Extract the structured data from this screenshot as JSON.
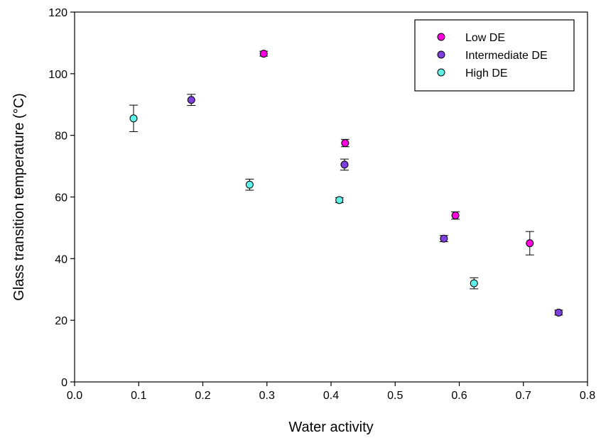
{
  "chart_data": {
    "type": "scatter",
    "title": "",
    "xlabel": "Water activity",
    "ylabel": "Glass transition temperature (°C)",
    "xlim": [
      0.0,
      0.8
    ],
    "ylim": [
      0,
      120
    ],
    "xticks": [
      0.0,
      0.1,
      0.2,
      0.3,
      0.4,
      0.5,
      0.6,
      0.7,
      0.8
    ],
    "xtick_labels": [
      "0.0",
      "0.1",
      "0.2",
      "0.3",
      "0.4",
      "0.5",
      "0.6",
      "0.7",
      "0.8"
    ],
    "yticks": [
      0,
      20,
      40,
      60,
      80,
      100,
      120
    ],
    "ytick_labels": [
      "0",
      "20",
      "40",
      "60",
      "80",
      "100",
      "120"
    ],
    "grid": false,
    "legend_position": "top-right",
    "series": [
      {
        "name": "Low DE",
        "color": "#FF00E0",
        "points": [
          {
            "x": 0.295,
            "y": 106.5,
            "err": 0.8
          },
          {
            "x": 0.422,
            "y": 77.5,
            "err": 1.2
          },
          {
            "x": 0.594,
            "y": 54.0,
            "err": 1.2
          },
          {
            "x": 0.71,
            "y": 45.0,
            "err": 3.8
          }
        ]
      },
      {
        "name": "Intermediate DE",
        "color": "#8040E0",
        "points": [
          {
            "x": 0.182,
            "y": 91.5,
            "err": 1.8
          },
          {
            "x": 0.421,
            "y": 70.5,
            "err": 1.8
          },
          {
            "x": 0.576,
            "y": 46.5,
            "err": 1.0
          },
          {
            "x": 0.755,
            "y": 22.5,
            "err": 0.8
          }
        ]
      },
      {
        "name": "High DE",
        "color": "#60F0E8",
        "points": [
          {
            "x": 0.092,
            "y": 85.5,
            "err": 4.3
          },
          {
            "x": 0.273,
            "y": 64.0,
            "err": 1.8
          },
          {
            "x": 0.413,
            "y": 59.0,
            "err": 0.8
          },
          {
            "x": 0.623,
            "y": 32.0,
            "err": 1.8
          }
        ]
      }
    ]
  }
}
